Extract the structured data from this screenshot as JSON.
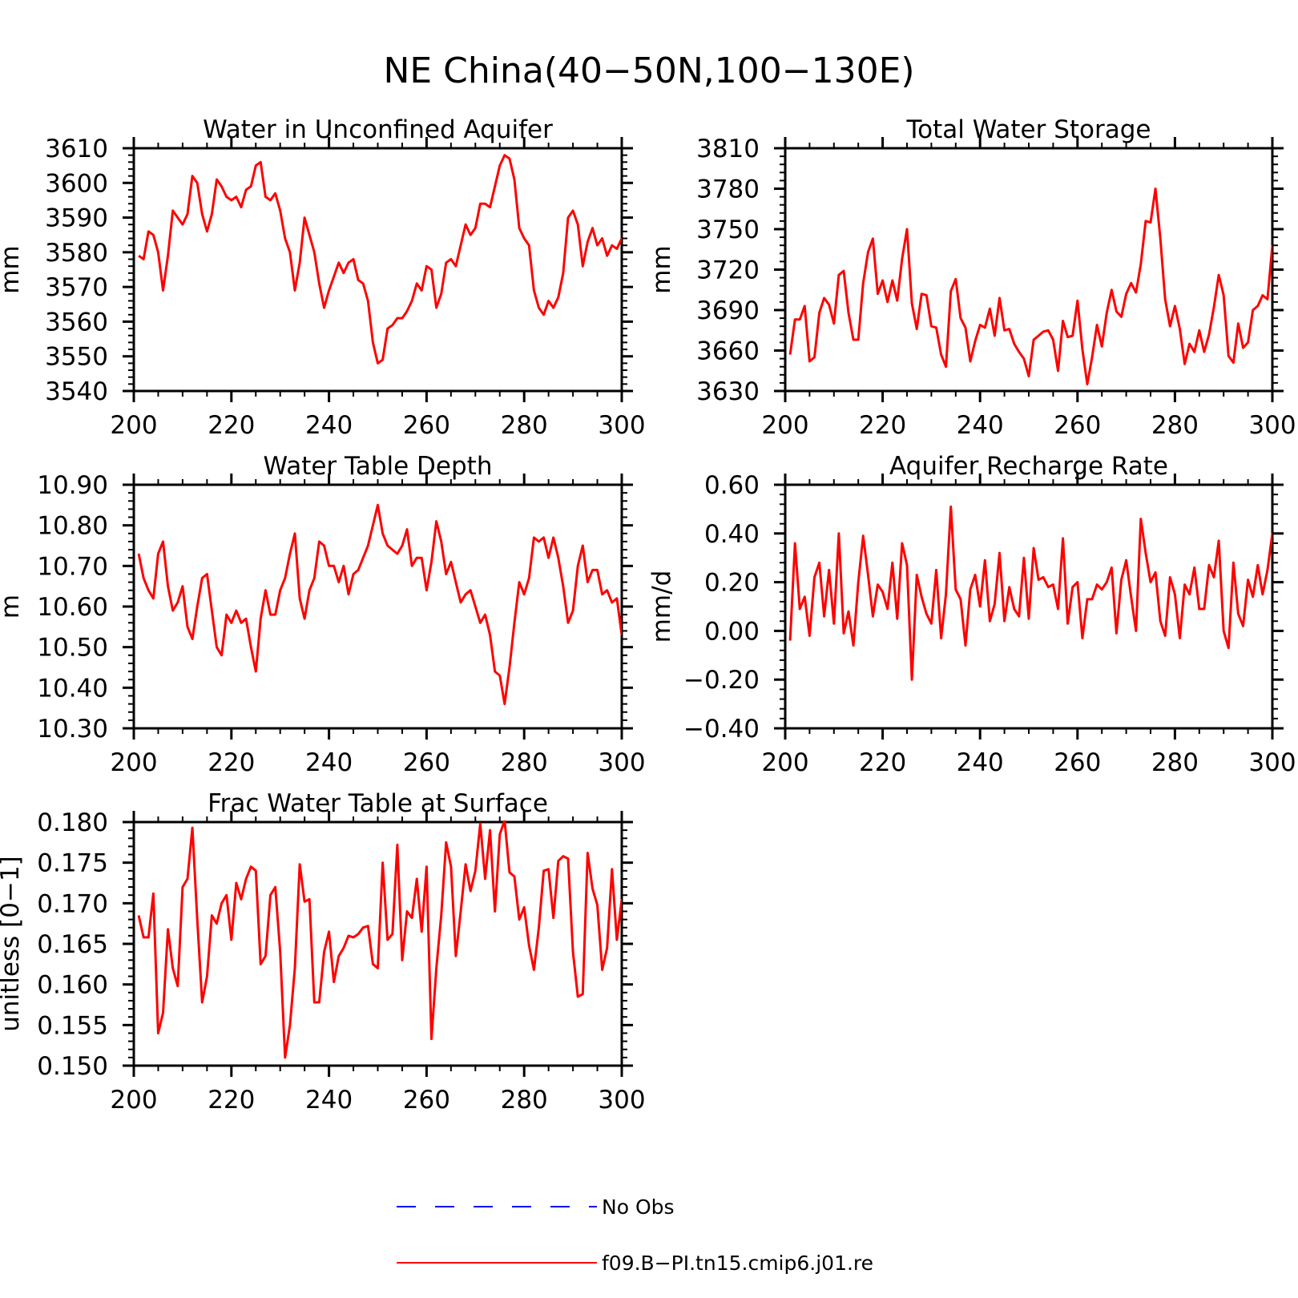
{
  "figure": {
    "title": "NE China(40−50N,100−130E)"
  },
  "colors": {
    "model": "#ff0000",
    "obs": "#0000ff",
    "axes": "#000000"
  },
  "legend": {
    "placement": "bottom-center",
    "entries": [
      {
        "label": "No Obs",
        "style": "dashed",
        "color": "#0000ff"
      },
      {
        "label": "f09.B−PI.tn15.cmip6.j01.re",
        "style": "solid",
        "color": "#ff0000"
      }
    ]
  },
  "chart_data": [
    {
      "type": "line",
      "title": "Water in Unconfined Aquifer",
      "ylabel": "mm",
      "xlim": [
        200,
        300
      ],
      "ylim": [
        3540,
        3610
      ],
      "xticks": [
        "200",
        "220",
        "240",
        "260",
        "280",
        "300"
      ],
      "yticks": [
        "3540",
        "3550",
        "3560",
        "3570",
        "3580",
        "3590",
        "3600",
        "3610"
      ],
      "x_start": 201,
      "x_step": 1,
      "series": [
        {
          "color": "#ff0000",
          "values": [
            3579,
            3578,
            3586,
            3585,
            3580,
            3569,
            3579,
            3592,
            3590,
            3588,
            3591,
            3602,
            3600,
            3591,
            3586,
            3591,
            3601,
            3599,
            3596,
            3595,
            3596,
            3593,
            3598,
            3599,
            3605,
            3606,
            3596,
            3595,
            3597,
            3592,
            3584,
            3580,
            3569,
            3577,
            3590,
            3585,
            3580,
            3571,
            3564,
            3569,
            3573,
            3577,
            3574,
            3577,
            3578,
            3572,
            3571,
            3566,
            3554,
            3548,
            3549,
            3558,
            3559,
            3561,
            3561,
            3563,
            3566,
            3571,
            3569,
            3576,
            3575,
            3564,
            3568,
            3577,
            3578,
            3576,
            3582,
            3588,
            3585,
            3587,
            3594,
            3594,
            3593,
            3599,
            3605,
            3608,
            3607,
            3601,
            3587,
            3584,
            3582,
            3569,
            3564,
            3562,
            3566,
            3564,
            3567,
            3574,
            3590,
            3592,
            3588,
            3576,
            3583,
            3587,
            3582,
            3584,
            3579,
            3582,
            3581,
            3584
          ]
        }
      ]
    },
    {
      "type": "line",
      "title": "Total Water Storage",
      "ylabel": "mm",
      "xlim": [
        200,
        300
      ],
      "ylim": [
        3630,
        3810
      ],
      "xticks": [
        "200",
        "220",
        "240",
        "260",
        "280",
        "300"
      ],
      "yticks": [
        "3630",
        "3660",
        "3690",
        "3720",
        "3750",
        "3780",
        "3810"
      ],
      "x_start": 201,
      "x_step": 1,
      "series": [
        {
          "color": "#ff0000",
          "values": [
            3657,
            3683,
            3683,
            3693,
            3652,
            3655,
            3688,
            3699,
            3694,
            3680,
            3716,
            3719,
            3688,
            3668,
            3668,
            3710,
            3733,
            3743,
            3702,
            3712,
            3696,
            3712,
            3697,
            3728,
            3750,
            3695,
            3676,
            3702,
            3701,
            3678,
            3677,
            3657,
            3648,
            3704,
            3713,
            3684,
            3677,
            3652,
            3667,
            3679,
            3677,
            3691,
            3671,
            3699,
            3675,
            3676,
            3665,
            3659,
            3654,
            3641,
            3668,
            3671,
            3674,
            3675,
            3668,
            3645,
            3682,
            3670,
            3671,
            3697,
            3661,
            3635,
            3655,
            3679,
            3663,
            3688,
            3705,
            3689,
            3685,
            3702,
            3710,
            3703,
            3724,
            3756,
            3755,
            3780,
            3743,
            3698,
            3678,
            3693,
            3676,
            3650,
            3665,
            3659,
            3675,
            3659,
            3672,
            3692,
            3716,
            3701,
            3656,
            3651,
            3680,
            3662,
            3666,
            3690,
            3693,
            3701,
            3698,
            3738
          ]
        }
      ]
    },
    {
      "type": "line",
      "title": "Water Table Depth",
      "ylabel": "m",
      "xlim": [
        200,
        300
      ],
      "ylim": [
        10.3,
        10.9
      ],
      "xticks": [
        "200",
        "220",
        "240",
        "260",
        "280",
        "300"
      ],
      "yticks": [
        "10.30",
        "10.40",
        "10.50",
        "10.60",
        "10.70",
        "10.80",
        "10.90"
      ],
      "x_start": 201,
      "x_step": 1,
      "series": [
        {
          "color": "#ff0000",
          "values": [
            10.73,
            10.67,
            10.64,
            10.62,
            10.73,
            10.76,
            10.65,
            10.59,
            10.61,
            10.65,
            10.55,
            10.52,
            10.6,
            10.67,
            10.68,
            10.59,
            10.5,
            10.48,
            10.58,
            10.56,
            10.59,
            10.56,
            10.57,
            10.5,
            10.44,
            10.57,
            10.64,
            10.58,
            10.58,
            10.64,
            10.67,
            10.73,
            10.78,
            10.62,
            10.57,
            10.64,
            10.67,
            10.76,
            10.75,
            10.7,
            10.7,
            10.66,
            10.7,
            10.63,
            10.68,
            10.69,
            10.72,
            10.75,
            10.8,
            10.85,
            10.78,
            10.75,
            10.74,
            10.73,
            10.75,
            10.79,
            10.7,
            10.72,
            10.72,
            10.64,
            10.71,
            10.81,
            10.76,
            10.68,
            10.71,
            10.66,
            10.61,
            10.63,
            10.64,
            10.6,
            10.56,
            10.58,
            10.53,
            10.44,
            10.43,
            10.36,
            10.45,
            10.56,
            10.66,
            10.63,
            10.67,
            10.77,
            10.76,
            10.77,
            10.72,
            10.77,
            10.72,
            10.65,
            10.56,
            10.59,
            10.7,
            10.75,
            10.66,
            10.69,
            10.69,
            10.63,
            10.64,
            10.61,
            10.62,
            10.53
          ]
        }
      ]
    },
    {
      "type": "line",
      "title": "Aquifer Recharge Rate",
      "ylabel": "mm/d",
      "xlim": [
        200,
        300
      ],
      "ylim": [
        -0.4,
        0.6
      ],
      "xticks": [
        "200",
        "220",
        "240",
        "260",
        "280",
        "300"
      ],
      "yticks": [
        "−0.40",
        "−0.20",
        "0.00",
        "0.20",
        "0.40",
        "0.60"
      ],
      "x_start": 201,
      "x_step": 1,
      "series": [
        {
          "color": "#ff0000",
          "values": [
            -0.04,
            0.36,
            0.09,
            0.14,
            -0.02,
            0.22,
            0.28,
            0.06,
            0.25,
            0.03,
            0.4,
            -0.01,
            0.08,
            -0.06,
            0.2,
            0.39,
            0.23,
            0.06,
            0.19,
            0.16,
            0.09,
            0.28,
            0.05,
            0.36,
            0.27,
            -0.2,
            0.23,
            0.14,
            0.07,
            0.03,
            0.25,
            -0.03,
            0.15,
            0.51,
            0.17,
            0.13,
            -0.06,
            0.17,
            0.23,
            0.1,
            0.29,
            0.04,
            0.11,
            0.32,
            0.04,
            0.18,
            0.09,
            0.06,
            0.3,
            0.05,
            0.34,
            0.21,
            0.22,
            0.18,
            0.19,
            0.09,
            0.38,
            0.03,
            0.18,
            0.2,
            -0.03,
            0.13,
            0.13,
            0.19,
            0.17,
            0.2,
            0.26,
            -0.01,
            0.21,
            0.29,
            0.14,
            0.0,
            0.46,
            0.32,
            0.2,
            0.24,
            0.04,
            -0.02,
            0.22,
            0.15,
            -0.03,
            0.19,
            0.15,
            0.26,
            0.09,
            0.09,
            0.27,
            0.22,
            0.37,
            0.0,
            -0.07,
            0.28,
            0.07,
            0.02,
            0.21,
            0.14,
            0.27,
            0.15,
            0.25,
            0.4
          ]
        }
      ]
    },
    {
      "type": "line",
      "title": "Frac Water Table at Surface",
      "ylabel": "unitless [0−1]",
      "xlim": [
        200,
        300
      ],
      "ylim": [
        0.15,
        0.18
      ],
      "xticks": [
        "200",
        "220",
        "240",
        "260",
        "280",
        "300"
      ],
      "yticks": [
        "0.150",
        "0.155",
        "0.160",
        "0.165",
        "0.170",
        "0.175",
        "0.180"
      ],
      "x_start": 201,
      "x_step": 1,
      "series": [
        {
          "color": "#ff0000",
          "values": [
            0.1685,
            0.1658,
            0.1658,
            0.1712,
            0.154,
            0.1565,
            0.1668,
            0.162,
            0.1598,
            0.172,
            0.173,
            0.1793,
            0.168,
            0.1578,
            0.161,
            0.1685,
            0.1675,
            0.17,
            0.171,
            0.1655,
            0.1725,
            0.1705,
            0.173,
            0.1745,
            0.174,
            0.1625,
            0.1635,
            0.171,
            0.172,
            0.164,
            0.151,
            0.155,
            0.162,
            0.1748,
            0.1702,
            0.1705,
            0.1578,
            0.1578,
            0.164,
            0.1665,
            0.1603,
            0.1635,
            0.1645,
            0.166,
            0.1658,
            0.1662,
            0.167,
            0.1672,
            0.1625,
            0.162,
            0.175,
            0.1655,
            0.1662,
            0.1772,
            0.163,
            0.169,
            0.1682,
            0.173,
            0.1665,
            0.1745,
            0.1533,
            0.162,
            0.1685,
            0.1775,
            0.1745,
            0.1635,
            0.169,
            0.1748,
            0.1715,
            0.174,
            0.1798,
            0.173,
            0.179,
            0.169,
            0.1785,
            0.1802,
            0.1738,
            0.1733,
            0.168,
            0.1695,
            0.1648,
            0.1618,
            0.167,
            0.174,
            0.1742,
            0.1682,
            0.1752,
            0.1758,
            0.1755,
            0.164,
            0.1585,
            0.1588,
            0.1762,
            0.1718,
            0.1698,
            0.1618,
            0.1645,
            0.1742,
            0.1655,
            0.1705
          ]
        }
      ]
    }
  ]
}
